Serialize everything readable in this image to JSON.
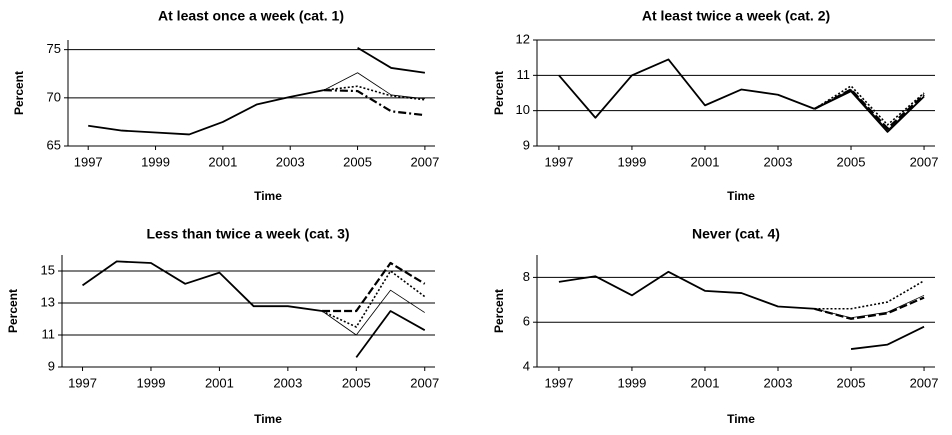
{
  "chart_data": [
    {
      "type": "line",
      "title": "At least once a week (cat. 1)",
      "xlabel": "Time",
      "ylabel": "Percent",
      "x": [
        1997,
        1998,
        1999,
        2000,
        2001,
        2002,
        2003,
        2004,
        2005,
        2006,
        2007
      ],
      "xlim": [
        1996.4,
        2007.3
      ],
      "xticks": [
        1997,
        1999,
        2001,
        2003,
        2005,
        2007
      ],
      "ylim": [
        65,
        76
      ],
      "yticks": [
        65,
        70,
        75
      ],
      "grid": true,
      "series": [
        {
          "color": "#000000",
          "width": 1.8,
          "dash": "none",
          "values": [
            67.1,
            66.6,
            66.4,
            66.2,
            67.5,
            69.3,
            70.1,
            70.8,
            null,
            null,
            null
          ]
        },
        {
          "color": "#000000",
          "width": 1.8,
          "dash": "none",
          "values": [
            null,
            null,
            null,
            null,
            null,
            null,
            null,
            null,
            75.2,
            73.1,
            72.6
          ]
        },
        {
          "color": "#000000",
          "width": 0.8,
          "dash": "none",
          "values": [
            null,
            null,
            null,
            null,
            null,
            null,
            null,
            70.8,
            72.6,
            70.3,
            69.9
          ]
        },
        {
          "color": "#000000",
          "width": 1.6,
          "dash": "2,2",
          "values": [
            null,
            null,
            null,
            null,
            null,
            null,
            null,
            70.8,
            71.2,
            70.2,
            69.8
          ]
        },
        {
          "color": "#000000",
          "width": 2.2,
          "dash": "8,3,2,3",
          "values": [
            null,
            null,
            null,
            null,
            null,
            null,
            null,
            70.8,
            70.7,
            68.6,
            68.2
          ]
        }
      ]
    },
    {
      "type": "line",
      "title": "At least twice a week (cat. 2)",
      "xlabel": "Time",
      "ylabel": "Percent",
      "x": [
        1997,
        1998,
        1999,
        2000,
        2001,
        2002,
        2003,
        2004,
        2005,
        2006,
        2007
      ],
      "xlim": [
        1996.4,
        2007.3
      ],
      "xticks": [
        1997,
        1999,
        2001,
        2003,
        2005,
        2007
      ],
      "ylim": [
        9,
        12
      ],
      "yticks": [
        9,
        10,
        11,
        12
      ],
      "grid": true,
      "series": [
        {
          "color": "#000000",
          "width": 1.8,
          "dash": "none",
          "values": [
            11.0,
            9.8,
            11.0,
            11.45,
            10.15,
            10.6,
            10.45,
            10.05,
            null,
            null,
            null
          ]
        },
        {
          "color": "#000000",
          "width": 1.8,
          "dash": "none",
          "values": [
            null,
            null,
            null,
            null,
            null,
            null,
            null,
            10.05,
            10.55,
            9.4,
            10.4
          ]
        },
        {
          "color": "#000000",
          "width": 1.6,
          "dash": "2,2",
          "values": [
            null,
            null,
            null,
            null,
            null,
            null,
            null,
            10.05,
            10.7,
            9.6,
            10.5
          ]
        },
        {
          "color": "#000000",
          "width": 2.2,
          "dash": "8,3",
          "values": [
            null,
            null,
            null,
            null,
            null,
            null,
            null,
            10.05,
            10.6,
            9.5,
            10.45
          ]
        },
        {
          "color": "#000000",
          "width": 0.8,
          "dash": "none",
          "values": [
            null,
            null,
            null,
            null,
            null,
            null,
            null,
            10.05,
            10.6,
            9.45,
            10.4
          ]
        }
      ]
    },
    {
      "type": "line",
      "title": "Less than twice a week (cat. 3)",
      "xlabel": "Time",
      "ylabel": "Percent",
      "x": [
        1997,
        1998,
        1999,
        2000,
        2001,
        2002,
        2003,
        2004,
        2005,
        2006,
        2007
      ],
      "xlim": [
        1996.4,
        2007.3
      ],
      "xticks": [
        1997,
        1999,
        2001,
        2003,
        2005,
        2007
      ],
      "ylim": [
        9,
        16
      ],
      "yticks": [
        9,
        11,
        13,
        15
      ],
      "grid": true,
      "series": [
        {
          "color": "#000000",
          "width": 1.8,
          "dash": "none",
          "values": [
            14.1,
            15.6,
            15.5,
            14.2,
            14.9,
            12.8,
            12.8,
            12.5,
            null,
            null,
            null
          ]
        },
        {
          "color": "#000000",
          "width": 2.2,
          "dash": "8,3",
          "values": [
            null,
            null,
            null,
            null,
            null,
            null,
            null,
            12.5,
            12.5,
            15.5,
            14.2
          ]
        },
        {
          "color": "#000000",
          "width": 1.6,
          "dash": "2,2",
          "values": [
            null,
            null,
            null,
            null,
            null,
            null,
            null,
            12.5,
            11.5,
            15.0,
            13.4
          ]
        },
        {
          "color": "#000000",
          "width": 0.8,
          "dash": "none",
          "values": [
            null,
            null,
            null,
            null,
            null,
            null,
            null,
            12.5,
            11.0,
            13.8,
            12.4
          ]
        },
        {
          "color": "#000000",
          "width": 1.8,
          "dash": "none",
          "values": [
            null,
            null,
            null,
            null,
            null,
            null,
            null,
            null,
            9.6,
            12.5,
            11.3
          ]
        }
      ]
    },
    {
      "type": "line",
      "title": "Never (cat. 4)",
      "xlabel": "Time",
      "ylabel": "Percent",
      "x": [
        1997,
        1998,
        1999,
        2000,
        2001,
        2002,
        2003,
        2004,
        2005,
        2006,
        2007
      ],
      "xlim": [
        1996.4,
        2007.3
      ],
      "xticks": [
        1997,
        1999,
        2001,
        2003,
        2005,
        2007
      ],
      "ylim": [
        4,
        9
      ],
      "yticks": [
        4,
        6,
        8
      ],
      "grid": true,
      "series": [
        {
          "color": "#000000",
          "width": 1.8,
          "dash": "none",
          "values": [
            7.8,
            8.05,
            7.2,
            8.25,
            7.4,
            7.3,
            6.7,
            6.6,
            null,
            null,
            null
          ]
        },
        {
          "color": "#000000",
          "width": 1.6,
          "dash": "2,2",
          "values": [
            null,
            null,
            null,
            null,
            null,
            null,
            null,
            6.6,
            6.6,
            6.9,
            7.85
          ]
        },
        {
          "color": "#000000",
          "width": 2.2,
          "dash": "8,3",
          "values": [
            null,
            null,
            null,
            null,
            null,
            null,
            null,
            6.6,
            6.15,
            6.4,
            7.1
          ]
        },
        {
          "color": "#000000",
          "width": 0.8,
          "dash": "none",
          "values": [
            null,
            null,
            null,
            null,
            null,
            null,
            null,
            6.6,
            6.2,
            6.45,
            7.2
          ]
        },
        {
          "color": "#000000",
          "width": 1.8,
          "dash": "none",
          "values": [
            null,
            null,
            null,
            null,
            null,
            null,
            null,
            null,
            4.8,
            5.0,
            5.8
          ]
        }
      ]
    }
  ]
}
